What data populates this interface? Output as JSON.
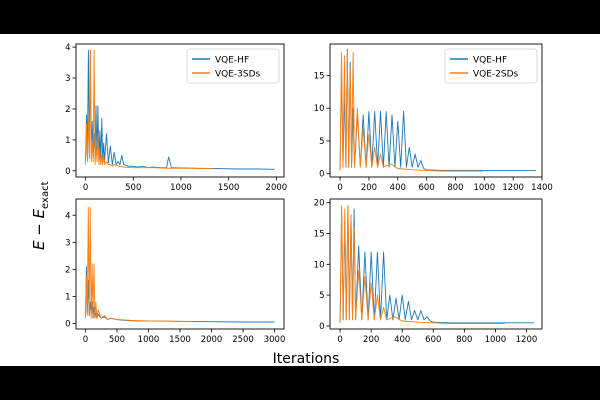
{
  "figure": {
    "ylabel_main": "E − E",
    "ylabel_sub": "exact",
    "xlabel": "Iterations"
  },
  "chart_data": [
    {
      "type": "line",
      "title": "",
      "xlabel": "",
      "ylabel": "",
      "xlim": [
        -100,
        2080
      ],
      "ylim": [
        -0.2,
        4.1
      ],
      "xticks": [
        0,
        500,
        1000,
        1500,
        2000
      ],
      "yticks": [
        0,
        1,
        2,
        3,
        4
      ],
      "grid": false,
      "legend": "top-right",
      "series": [
        {
          "name": "VQE-HF",
          "color": "#1f77b4",
          "x": [
            0,
            10,
            20,
            30,
            40,
            50,
            60,
            70,
            80,
            90,
            100,
            110,
            120,
            130,
            140,
            150,
            160,
            170,
            180,
            190,
            200,
            220,
            240,
            260,
            280,
            300,
            320,
            340,
            360,
            380,
            400,
            450,
            500,
            550,
            600,
            650,
            700,
            800,
            850,
            870,
            900,
            1000,
            1200,
            1400,
            1600,
            1800,
            1980
          ],
          "y": [
            0.3,
            1.8,
            0.5,
            3.9,
            0.4,
            3.9,
            0.6,
            1.6,
            0.4,
            1.2,
            0.5,
            2.1,
            0.4,
            2.1,
            0.3,
            1.3,
            0.3,
            1.7,
            0.3,
            0.9,
            0.3,
            1.2,
            0.25,
            0.8,
            0.2,
            0.6,
            0.2,
            0.3,
            0.2,
            0.5,
            0.2,
            0.15,
            0.15,
            0.12,
            0.15,
            0.1,
            0.12,
            0.1,
            0.1,
            0.45,
            0.1,
            0.09,
            0.08,
            0.07,
            0.06,
            0.06,
            0.05
          ]
        },
        {
          "name": "VQE-3SDs",
          "color": "#ff7f0e",
          "x": [
            0,
            10,
            20,
            30,
            40,
            50,
            60,
            70,
            80,
            90,
            100,
            110,
            120,
            130,
            140,
            150,
            160,
            170,
            180,
            190,
            200,
            220,
            240,
            260,
            280,
            300,
            350,
            400,
            500,
            600,
            700,
            800,
            900,
            1000,
            1100,
            1200,
            1330
          ],
          "y": [
            0.2,
            1.5,
            0.3,
            1.7,
            0.4,
            3.9,
            0.3,
            1.0,
            0.3,
            3.9,
            0.2,
            0.8,
            0.3,
            1.2,
            0.2,
            0.6,
            0.2,
            0.5,
            0.2,
            0.5,
            0.2,
            0.3,
            0.2,
            0.2,
            0.15,
            0.2,
            0.15,
            0.12,
            0.1,
            0.1,
            0.1,
            0.09,
            0.08,
            0.08,
            0.08,
            0.07,
            0.07
          ]
        }
      ]
    },
    {
      "type": "line",
      "title": "",
      "xlabel": "",
      "ylabel": "",
      "xlim": [
        -70,
        1400
      ],
      "ylim": [
        -0.5,
        19.8
      ],
      "xticks": [
        0,
        200,
        400,
        600,
        800,
        1000,
        1200,
        1400
      ],
      "yticks": [
        0,
        5,
        10,
        15
      ],
      "grid": false,
      "legend": "top-right",
      "series": [
        {
          "name": "VQE-HF",
          "color": "#1f77b4",
          "x": [
            0,
            10,
            20,
            30,
            40,
            50,
            60,
            70,
            80,
            90,
            100,
            120,
            140,
            160,
            180,
            200,
            220,
            240,
            260,
            280,
            300,
            320,
            340,
            360,
            380,
            400,
            420,
            440,
            460,
            480,
            500,
            520,
            540,
            560,
            580,
            600,
            700,
            800,
            900,
            1000,
            1100,
            1200,
            1360
          ],
          "y": [
            0.5,
            17,
            1,
            13,
            1,
            19,
            1,
            17,
            1,
            10,
            1,
            9,
            1,
            9,
            1,
            9.5,
            1,
            9.5,
            1,
            9.5,
            1,
            9.5,
            1,
            9,
            1,
            8,
            1,
            9.5,
            1,
            4,
            1,
            3,
            1,
            2,
            0.8,
            0.6,
            0.5,
            0.5,
            0.5,
            0.5,
            0.5,
            0.5,
            0.5
          ]
        },
        {
          "name": "VQE-2SDs",
          "color": "#ff7f0e",
          "x": [
            0,
            10,
            20,
            30,
            40,
            50,
            60,
            70,
            80,
            90,
            100,
            120,
            140,
            160,
            180,
            200,
            220,
            240,
            260,
            280,
            300,
            350,
            400,
            500,
            600,
            700,
            800,
            900,
            990
          ],
          "y": [
            0.5,
            18.5,
            1,
            18,
            1,
            18.5,
            1,
            16,
            1,
            18.5,
            1,
            10,
            1,
            7,
            1,
            6,
            1,
            4,
            1,
            3,
            1,
            1.5,
            0.8,
            0.6,
            0.5,
            0.4,
            0.4,
            0.4,
            0.4
          ]
        }
      ]
    },
    {
      "type": "line",
      "title": "",
      "xlabel": "",
      "ylabel": "",
      "xlim": [
        -150,
        3150
      ],
      "ylim": [
        -0.2,
        4.6
      ],
      "xticks": [
        0,
        500,
        1000,
        1500,
        2000,
        2500,
        3000
      ],
      "yticks": [
        0,
        1,
        2,
        3,
        4
      ],
      "grid": false,
      "legend": "none",
      "series": [
        {
          "name": "VQE-HF",
          "color": "#1f77b4",
          "x": [
            0,
            15,
            30,
            45,
            60,
            75,
            90,
            105,
            120,
            135,
            150,
            165,
            180,
            200,
            250,
            300,
            350,
            400,
            500,
            600,
            800,
            1000,
            1500,
            2000,
            2500,
            3000
          ],
          "y": [
            0.3,
            2.1,
            0.4,
            1.6,
            0.3,
            0.8,
            0.3,
            0.8,
            0.2,
            0.6,
            0.2,
            0.4,
            0.2,
            0.35,
            0.2,
            0.25,
            0.15,
            0.2,
            0.15,
            0.12,
            0.1,
            0.1,
            0.08,
            0.07,
            0.06,
            0.06
          ]
        },
        {
          "name": "VQE-3SDs",
          "color": "#ff7f0e",
          "x": [
            0,
            15,
            30,
            45,
            60,
            75,
            90,
            105,
            120,
            135,
            150,
            165,
            180,
            200,
            250,
            300,
            350,
            400,
            500,
            700,
            1000,
            1300,
            1680
          ],
          "y": [
            0.2,
            1.8,
            0.3,
            4.3,
            0.3,
            4.3,
            0.2,
            2.2,
            0.3,
            2.2,
            0.2,
            0.8,
            0.2,
            0.5,
            0.2,
            0.3,
            0.15,
            0.2,
            0.15,
            0.12,
            0.1,
            0.09,
            0.08
          ]
        }
      ]
    },
    {
      "type": "line",
      "title": "",
      "xlabel": "",
      "ylabel": "",
      "xlim": [
        -65,
        1300
      ],
      "ylim": [
        -0.5,
        20.6
      ],
      "xticks": [
        0,
        200,
        400,
        600,
        800,
        1000,
        1200
      ],
      "yticks": [
        0,
        5,
        10,
        15,
        20
      ],
      "grid": false,
      "legend": "none",
      "series": [
        {
          "name": "VQE-HF",
          "color": "#1f77b4",
          "x": [
            0,
            10,
            20,
            30,
            40,
            50,
            60,
            70,
            80,
            90,
            100,
            120,
            140,
            160,
            180,
            200,
            220,
            240,
            260,
            280,
            300,
            320,
            340,
            360,
            380,
            400,
            420,
            440,
            460,
            480,
            500,
            520,
            540,
            560,
            580,
            600,
            700,
            800,
            900,
            1000,
            1100,
            1250
          ],
          "y": [
            0.5,
            19,
            1,
            17,
            1,
            19.5,
            1,
            18,
            1,
            19,
            1,
            13,
            1,
            12,
            1,
            12,
            1,
            12,
            1,
            12,
            1,
            5,
            1,
            4.5,
            1,
            5,
            1,
            4,
            1,
            2.5,
            1,
            2.5,
            1,
            1.5,
            0.8,
            0.6,
            0.5,
            0.5,
            0.5,
            0.5,
            0.5,
            0.5
          ]
        },
        {
          "name": "VQE-2SDs",
          "color": "#ff7f0e",
          "x": [
            0,
            10,
            20,
            30,
            40,
            50,
            60,
            70,
            80,
            90,
            100,
            120,
            140,
            160,
            180,
            200,
            220,
            240,
            260,
            280,
            300,
            350,
            400,
            500,
            600,
            700,
            800,
            900,
            1000,
            1060
          ],
          "y": [
            0.5,
            19.5,
            1,
            19,
            1,
            19.5,
            1,
            18,
            1,
            16,
            1,
            9,
            1,
            8,
            1,
            7,
            1,
            5,
            1,
            3,
            1,
            1.5,
            0.8,
            0.6,
            0.5,
            0.4,
            0.4,
            0.4,
            0.4,
            0.4
          ]
        }
      ]
    }
  ]
}
